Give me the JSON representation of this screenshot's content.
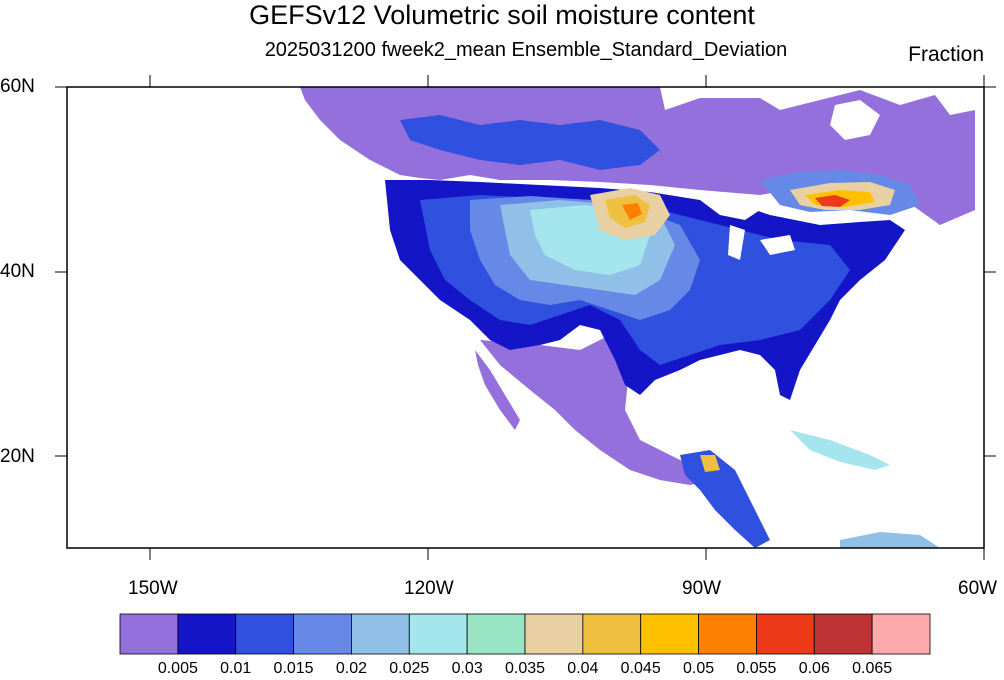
{
  "title": "GEFSv12 Volumetric soil moisture content",
  "subtitle": "2025031200 fweek2_mean Ensemble_Standard_Deviation",
  "units": "Fraction",
  "lat_labels": [
    "60N",
    "40N",
    "20N"
  ],
  "lon_labels": [
    "150W",
    "120W",
    "90W",
    "60W"
  ],
  "colorbar": {
    "colors": [
      "#9370db",
      "#1515c8",
      "#3050e0",
      "#6688e6",
      "#90c0e8",
      "#a5e6ee",
      "#98e4c4",
      "#e8d0a2",
      "#efc040",
      "#ffc000",
      "#ff8000",
      "#ec3a18",
      "#be3434",
      "#ffaaaa"
    ],
    "labels": [
      "0.005",
      "0.01",
      "0.015",
      "0.02",
      "0.025",
      "0.03",
      "0.035",
      "0.04",
      "0.045",
      "0.05",
      "0.055",
      "0.06",
      "0.065"
    ]
  }
}
